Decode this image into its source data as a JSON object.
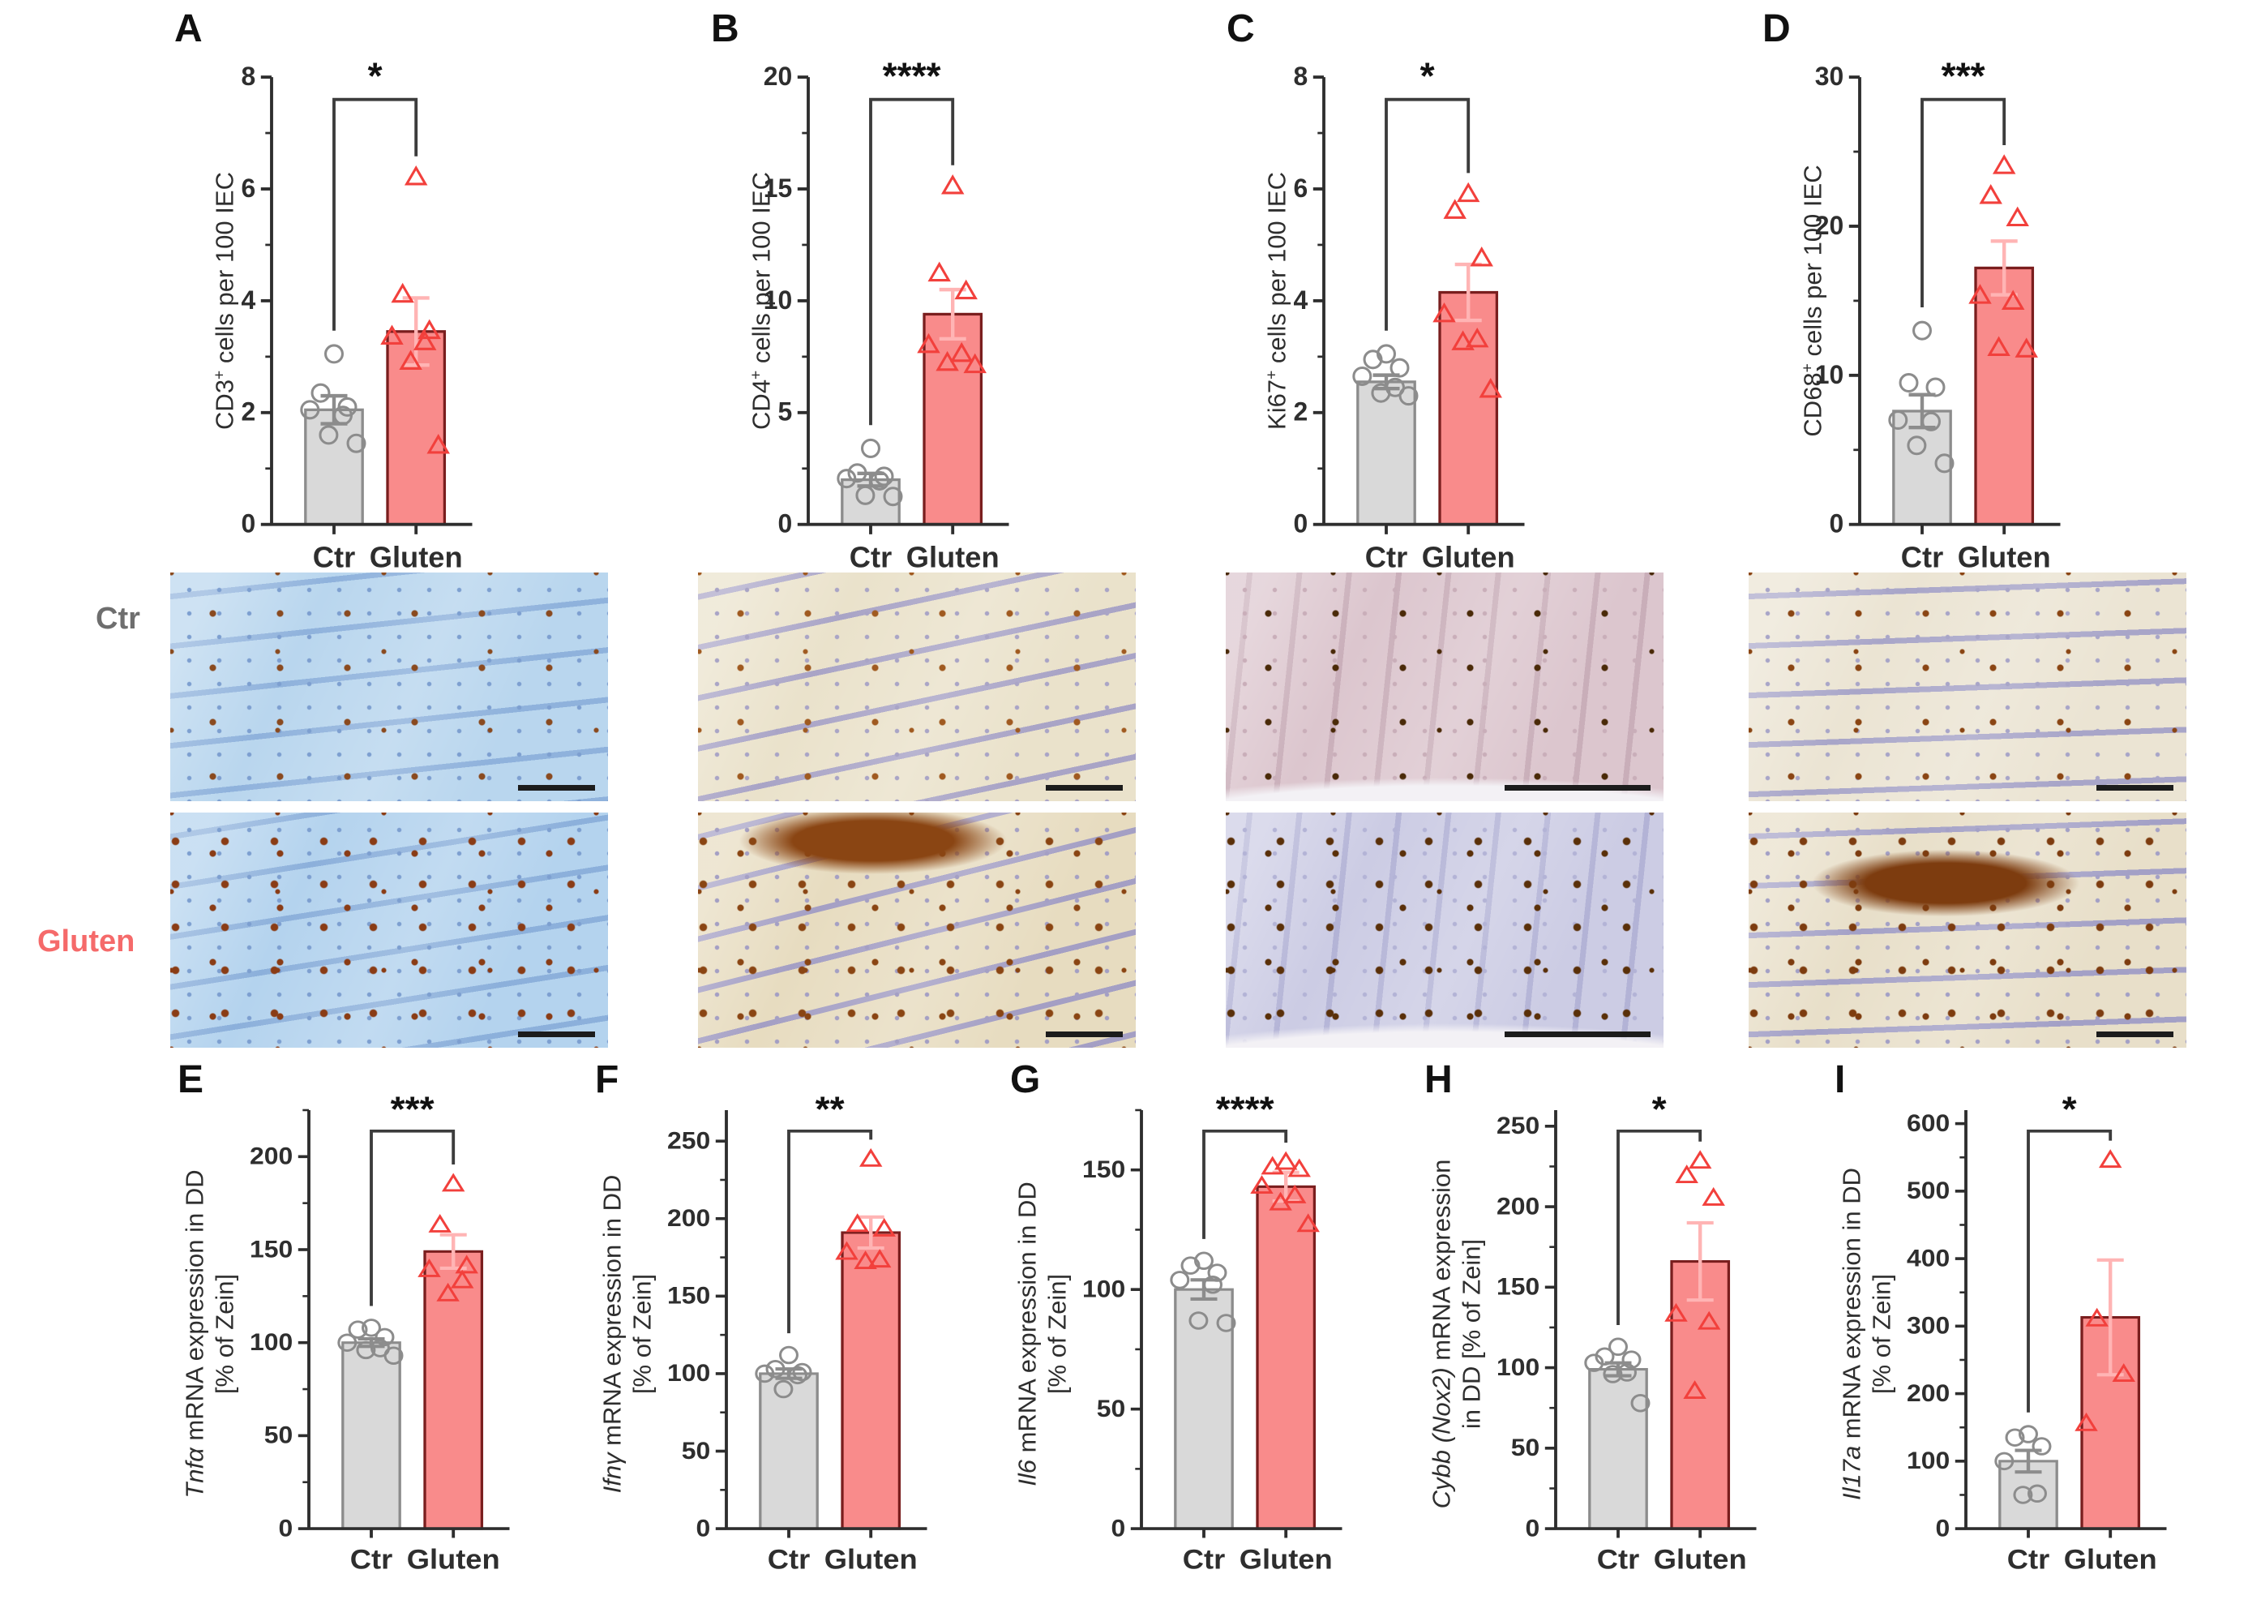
{
  "figure": {
    "categories": [
      "Ctr",
      "Gluten"
    ]
  },
  "colors": {
    "bar_ctr_fill": "#d9d9d9",
    "bar_ctr_stroke": "#8c8c8c",
    "point_ctr": "#8c8c8c",
    "bar_gluten_fill": "#f98b8b",
    "bar_gluten_stroke": "#7a1e1e",
    "point_gluten": "#f2403c",
    "err_ctr": "#8c8c8c",
    "err_gluten": "#ffb4b4",
    "axis": "#2e2e2e",
    "sig": "#111111",
    "label_ctr": "#6e6e6e",
    "label_gluten": "#f56a6a"
  },
  "chart_data": [
    {
      "panel": "A",
      "type": "bar",
      "ylabel": {
        "italic": "",
        "main": "CD3",
        "sup": "+",
        "rest": " cells per 100 IEC",
        "line2": ""
      },
      "yaxis_top": 8,
      "yticks": [
        0,
        2,
        4,
        6,
        8
      ],
      "categories": [
        "Ctr",
        "Gluten"
      ],
      "significance": "*",
      "series": [
        {
          "name": "Ctr",
          "mean": 2.05,
          "sem": 0.25,
          "points": [
            3.05,
            2.35,
            2.1,
            2.05,
            1.95,
            1.6,
            1.45
          ]
        },
        {
          "name": "Gluten",
          "mean": 3.45,
          "sem": 0.6,
          "points": [
            6.2,
            4.1,
            3.45,
            3.35,
            3.25,
            2.9,
            1.4
          ]
        }
      ]
    },
    {
      "panel": "B",
      "type": "bar",
      "ylabel": {
        "italic": "",
        "main": "CD4",
        "sup": "+",
        "rest": " cells per 100 IEC",
        "line2": ""
      },
      "yaxis_top": 20,
      "yticks": [
        0,
        5,
        10,
        15,
        20
      ],
      "categories": [
        "Ctr",
        "Gluten"
      ],
      "significance": "****",
      "series": [
        {
          "name": "Ctr",
          "mean": 2.0,
          "sem": 0.28,
          "points": [
            3.4,
            2.3,
            2.15,
            2.05,
            1.95,
            1.3,
            1.25
          ]
        },
        {
          "name": "Gluten",
          "mean": 9.4,
          "sem": 1.1,
          "points": [
            15.1,
            11.2,
            10.4,
            8.0,
            7.6,
            7.2,
            7.1
          ]
        }
      ]
    },
    {
      "panel": "C",
      "type": "bar",
      "ylabel": {
        "italic": "",
        "main": "Ki67",
        "sup": "+",
        "rest": " cells per 100 IEC",
        "line2": ""
      },
      "yaxis_top": 8,
      "yticks": [
        0,
        2,
        4,
        6,
        8
      ],
      "categories": [
        "Ctr",
        "Gluten"
      ],
      "significance": "*",
      "series": [
        {
          "name": "Ctr",
          "mean": 2.55,
          "sem": 0.12,
          "points": [
            3.05,
            2.95,
            2.8,
            2.65,
            2.45,
            2.35,
            2.3
          ]
        },
        {
          "name": "Gluten",
          "mean": 4.15,
          "sem": 0.5,
          "points": [
            5.9,
            5.6,
            4.75,
            3.75,
            3.3,
            3.25,
            2.4
          ]
        }
      ]
    },
    {
      "panel": "D",
      "type": "bar",
      "ylabel": {
        "italic": "",
        "main": "CD68",
        "sup": "+",
        "rest": " cells per 100 IEC",
        "line2": ""
      },
      "yaxis_top": 30,
      "yticks": [
        0,
        10,
        20,
        30
      ],
      "categories": [
        "Ctr",
        "Gluten"
      ],
      "significance": "***",
      "series": [
        {
          "name": "Ctr",
          "mean": 7.6,
          "sem": 1.1,
          "points": [
            13.0,
            9.5,
            9.2,
            7.0,
            6.9,
            5.3,
            4.1
          ]
        },
        {
          "name": "Gluten",
          "mean": 17.2,
          "sem": 1.8,
          "points": [
            24.0,
            22.0,
            20.5,
            15.3,
            14.9,
            11.8,
            11.7
          ]
        }
      ]
    },
    {
      "panel": "E",
      "type": "bar",
      "ylabel": {
        "italic": "Tnfα",
        "main": "",
        "sup": "",
        "rest": " mRNA expression in DD",
        "line2": "[% of Zein]"
      },
      "yaxis_top": 225,
      "yticks": [
        0,
        50,
        100,
        150,
        200
      ],
      "categories": [
        "Ctr",
        "Gluten"
      ],
      "significance": "***",
      "series": [
        {
          "name": "Ctr",
          "mean": 100,
          "sem": 2,
          "points": [
            108,
            107,
            103,
            100,
            97,
            96,
            93
          ]
        },
        {
          "name": "Gluten",
          "mean": 149,
          "sem": 9,
          "points": [
            185,
            163,
            141,
            139,
            133,
            126
          ]
        }
      ]
    },
    {
      "panel": "F",
      "type": "bar",
      "ylabel": {
        "italic": "Ifnγ",
        "main": "",
        "sup": "",
        "rest": " mRNA expression in DD",
        "line2": "[% of Zein]"
      },
      "yaxis_top": 270,
      "yticks": [
        0,
        50,
        100,
        150,
        200,
        250
      ],
      "categories": [
        "Ctr",
        "Gluten"
      ],
      "significance": "**",
      "series": [
        {
          "name": "Ctr",
          "mean": 100,
          "sem": 3,
          "points": [
            112,
            103,
            101,
            100,
            99,
            90
          ]
        },
        {
          "name": "Gluten",
          "mean": 191,
          "sem": 10,
          "points": [
            238,
            196,
            193,
            178,
            173,
            172
          ]
        }
      ]
    },
    {
      "panel": "G",
      "type": "bar",
      "ylabel": {
        "italic": "Il6",
        "main": "",
        "sup": "",
        "rest": " mRNA expression in DD",
        "line2": "[% of Zein]"
      },
      "yaxis_top": 175,
      "yticks": [
        0,
        50,
        100,
        150
      ],
      "categories": [
        "Ctr",
        "Gluten"
      ],
      "significance": "****",
      "series": [
        {
          "name": "Ctr",
          "mean": 100,
          "sem": 4,
          "points": [
            112,
            110,
            107,
            104,
            102,
            87,
            86
          ]
        },
        {
          "name": "Gluten",
          "mean": 143,
          "sem": 6,
          "points": [
            153,
            151,
            150,
            143,
            139,
            136,
            127
          ]
        }
      ]
    },
    {
      "panel": "H",
      "type": "bar",
      "ylabel": {
        "italic": "Cybb (Nox2)",
        "main": "",
        "sup": "",
        "rest": " mRNA expression",
        "line2": "in DD [% of Zein]"
      },
      "yaxis_top": 260,
      "yticks": [
        0,
        50,
        100,
        150,
        200,
        250
      ],
      "categories": [
        "Ctr",
        "Gluten"
      ],
      "significance": "*",
      "series": [
        {
          "name": "Ctr",
          "mean": 99,
          "sem": 4,
          "points": [
            113,
            107,
            105,
            103,
            97,
            96,
            78
          ]
        },
        {
          "name": "Gluten",
          "mean": 166,
          "sem": 24,
          "points": [
            228,
            219,
            205,
            133,
            128,
            85
          ]
        }
      ]
    },
    {
      "panel": "I",
      "type": "bar",
      "ylabel": {
        "italic": "Il17a",
        "main": "",
        "sup": "",
        "rest": " mRNA expression in DD",
        "line2": "[% of Zein]"
      },
      "yaxis_top": 620,
      "yticks": [
        0,
        100,
        200,
        300,
        400,
        500,
        600
      ],
      "categories": [
        "Ctr",
        "Gluten"
      ],
      "significance": "*",
      "series": [
        {
          "name": "Ctr",
          "mean": 100,
          "sem": 16,
          "points": [
            140,
            135,
            122,
            100,
            52,
            50
          ]
        },
        {
          "name": "Gluten",
          "mean": 313,
          "sem": 85,
          "points": [
            545,
            310,
            228,
            155
          ]
        }
      ]
    }
  ],
  "histology": {
    "row_labels": [
      {
        "text": "Ctr",
        "color": "#6e6e6e"
      },
      {
        "text": "Gluten",
        "color": "#f56a6a"
      }
    ],
    "tiles": [
      {
        "id": "cd3-ctr",
        "base": "#b9d6ee",
        "band": "#8fb2dc",
        "dot": "#8a4a1f",
        "nuc": "#7d9fd0"
      },
      {
        "id": "cd4-ctr",
        "base": "#eae2cb",
        "band": "#a9a4c6",
        "dot": "#a05a20",
        "nuc": "#a9a4c6"
      },
      {
        "id": "ki67-ctr",
        "base": "#dcc6ce",
        "band": "#c9aeb9",
        "dot": "#4a2a08",
        "nuc": "#c9aeb9"
      },
      {
        "id": "cd68-ctr",
        "base": "#ebe4d3",
        "band": "#a8a5c8",
        "dot": "#8a4513",
        "nuc": "#a8a5c8"
      },
      {
        "id": "cd3-gluten",
        "base": "#b4d3ee",
        "band": "#8cb0db",
        "dot": "#8a3c15",
        "nuc": "#7d9fd0"
      },
      {
        "id": "cd4-gluten",
        "base": "#e7dcc0",
        "band": "#a49fc4",
        "dot": "#8a4513",
        "nuc": "#a49fc4"
      },
      {
        "id": "ki67-gluten",
        "base": "#cccce4",
        "band": "#b3b3d6",
        "dot": "#5a3009",
        "nuc": "#b3b3d6"
      },
      {
        "id": "cd68-gluten",
        "base": "#e8dfc9",
        "band": "#a3a0c6",
        "dot": "#7d3c0f",
        "nuc": "#a3a0c6"
      }
    ]
  }
}
